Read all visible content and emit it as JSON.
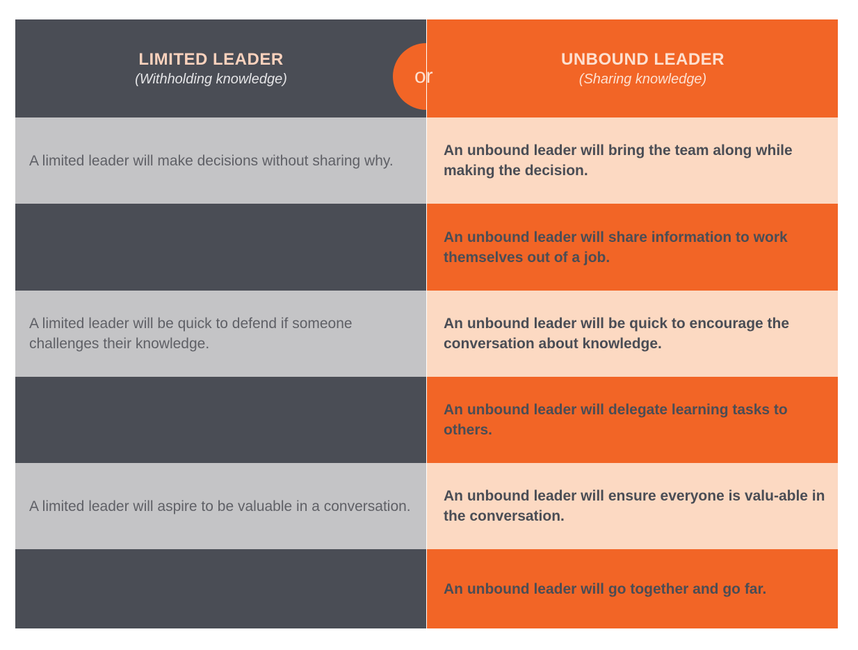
{
  "left_header": {
    "title": "LIMITED LEADER",
    "subtitle": "(Withholding knowledge)"
  },
  "right_header": {
    "title": "UNBOUND LEADER",
    "subtitle": "(Sharing knowledge)"
  },
  "separator": "or",
  "rows": [
    {
      "limited": "A limited leader will make decisions without sharing why.",
      "unbound": "An unbound leader will bring the team along while making the decision."
    },
    {
      "limited": "",
      "unbound": "An unbound leader will share information to work themselves out of a job."
    },
    {
      "limited": "A limited leader will be quick to defend if someone challenges their knowledge.",
      "unbound": "An unbound leader will be quick to encourage the conversation about knowledge."
    },
    {
      "limited": "",
      "unbound": "An unbound leader will delegate learning tasks to others."
    },
    {
      "limited": "A limited leader will aspire to be valuable in a conversation.",
      "unbound": "An unbound leader will ensure everyone is valu-able in the conversation."
    },
    {
      "limited": "",
      "unbound": "An unbound leader will go together and go far."
    }
  ],
  "colors": {
    "dark": "#4a4d55",
    "grey": "#c4c4c6",
    "orange": "#f26526",
    "peach": "#fcd9c2"
  }
}
